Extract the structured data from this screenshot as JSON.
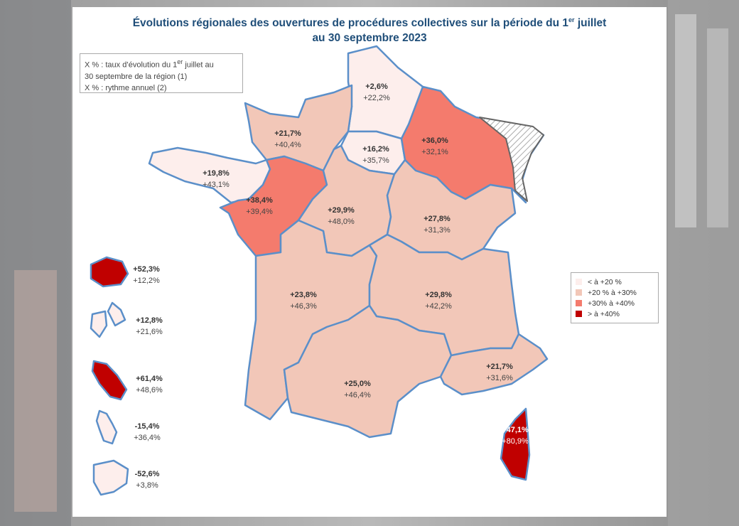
{
  "title": {
    "line1_before": "Évolutions régionales des ouvertures de procédures collectives sur la période du 1",
    "line1_superscript": "er",
    "line1_after": " juillet",
    "line2": "au 30 septembre 2023"
  },
  "note": {
    "line1_before": "X % : taux d’évolution du 1",
    "line1_superscript": "er",
    "line1_after": " juillet au",
    "line2": "30 septembre de la région (1)",
    "line3": "X % : rythme annuel (2)"
  },
  "legend": [
    {
      "label": "< à +20 %",
      "color": "#fdeeec"
    },
    {
      "label": "+20 % à +30%",
      "color": "#f2c7b8"
    },
    {
      "label": "+30% à +40%",
      "color": "#f47b6d"
    },
    {
      "label": "> à +40%",
      "color": "#c00000"
    }
  ],
  "regions": [
    {
      "change": "+2,6%",
      "annual": "+22,2%",
      "color": "#fdeeec"
    },
    {
      "change": "+21,7%",
      "annual": "+40,4%",
      "color": "#f2c7b8"
    },
    {
      "change": "+16,2%",
      "annual": "+35,7%",
      "color": "#fdeeec"
    },
    {
      "change": "+36,0%",
      "annual": "+32,1%",
      "color": "#f47b6d"
    },
    {
      "change": "+19,8%",
      "annual": "+43,1%",
      "color": "#fdeeec"
    },
    {
      "change": "+38,4%",
      "annual": "+39,4%",
      "color": "#f47b6d"
    },
    {
      "change": "+29,9%",
      "annual": "+48,0%",
      "color": "#f2c7b8"
    },
    {
      "change": "+27,8%",
      "annual": "+31,3%",
      "color": "#f2c7b8"
    },
    {
      "change": "+23,8%",
      "annual": "+46,3%",
      "color": "#f2c7b8"
    },
    {
      "change": "+29,8%",
      "annual": "+42,2%",
      "color": "#f2c7b8"
    },
    {
      "change": "+25,0%",
      "annual": "+46,4%",
      "color": "#f2c7b8"
    },
    {
      "change": "+21,7%",
      "annual": "+31,6%",
      "color": "#f2c7b8"
    },
    {
      "change": "+47,1%",
      "annual": "+80,9%",
      "color": "#c00000"
    }
  ],
  "overseas": [
    {
      "change": "+52,3%",
      "annual": "+12,2%",
      "color": "#c00000"
    },
    {
      "change": "+12,8%",
      "annual": "+21,6%",
      "color": "#fdeeec"
    },
    {
      "change": "+61,4%",
      "annual": "+48,6%",
      "color": "#c00000"
    },
    {
      "change": "-15,4%",
      "annual": "+36,4%",
      "color": "#fdeeec"
    },
    {
      "change": "-52,6%",
      "annual": "+3,8%",
      "color": "#fdeeec"
    }
  ]
}
